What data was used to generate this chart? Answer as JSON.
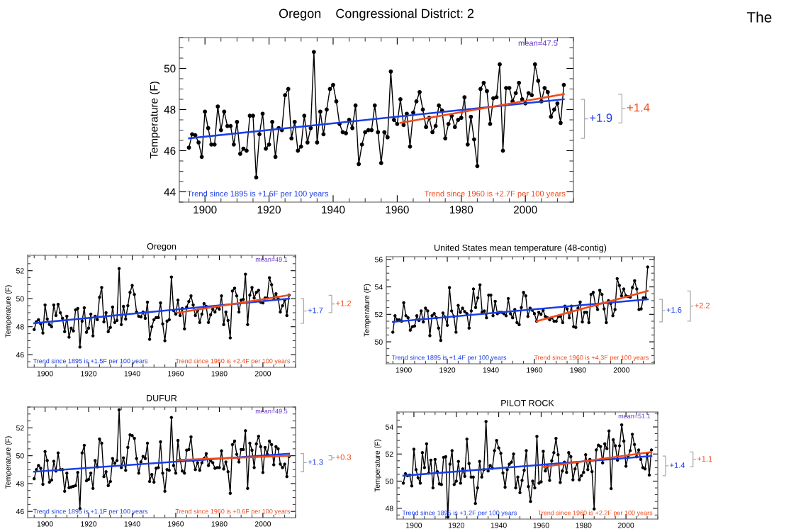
{
  "chart_data": [
    {
      "type": "line",
      "title": "Oregon    Congressional District: 2",
      "ylabel": "Temperature (F)",
      "marker": "circle",
      "xlim": [
        1892,
        2015
      ],
      "xticks": [
        1900,
        1920,
        1940,
        1960,
        1980,
        2000
      ],
      "ylim": [
        43.5,
        51.5
      ],
      "yticks": [
        44,
        46,
        48,
        50
      ],
      "grid": false,
      "x": [
        1895,
        1896,
        1897,
        1898,
        1899,
        1900,
        1901,
        1902,
        1903,
        1904,
        1905,
        1906,
        1907,
        1908,
        1909,
        1910,
        1911,
        1912,
        1913,
        1914,
        1915,
        1916,
        1917,
        1918,
        1919,
        1920,
        1921,
        1922,
        1923,
        1924,
        1925,
        1926,
        1927,
        1928,
        1929,
        1930,
        1931,
        1932,
        1933,
        1934,
        1935,
        1936,
        1937,
        1938,
        1939,
        1940,
        1941,
        1942,
        1943,
        1944,
        1945,
        1946,
        1947,
        1948,
        1949,
        1950,
        1951,
        1952,
        1953,
        1954,
        1955,
        1956,
        1957,
        1958,
        1959,
        1960,
        1961,
        1962,
        1963,
        1964,
        1965,
        1966,
        1967,
        1968,
        1969,
        1970,
        1971,
        1972,
        1973,
        1974,
        1975,
        1976,
        1977,
        1978,
        1979,
        1980,
        1981,
        1982,
        1983,
        1984,
        1985,
        1986,
        1987,
        1988,
        1989,
        1990,
        1991,
        1992,
        1993,
        1994,
        1995,
        1996,
        1997,
        1998,
        1999,
        2000,
        2001,
        2002,
        2003,
        2004,
        2005,
        2006,
        2007,
        2008,
        2009,
        2010,
        2011,
        2012
      ],
      "series": [
        {
          "color": "#000000",
          "values": [
            46.15,
            46.8,
            46.75,
            46.4,
            45.7,
            47.9,
            47.1,
            46.3,
            46.3,
            48.15,
            47.0,
            47.9,
            47.2,
            47.2,
            46.3,
            47.4,
            45.85,
            46.1,
            46.0,
            47.7,
            47.7,
            44.7,
            46.8,
            47.8,
            46.1,
            46.3,
            47.4,
            45.7,
            47.1,
            47.0,
            48.7,
            49.0,
            46.6,
            47.4,
            46.0,
            46.2,
            47.7,
            46.4,
            47.1,
            50.8,
            46.4,
            47.9,
            46.8,
            48.0,
            49.0,
            49.2,
            48.4,
            47.3,
            46.9,
            46.85,
            47.5,
            47.1,
            48.2,
            45.35,
            46.3,
            46.9,
            47.0,
            47.0,
            48.2,
            46.9,
            45.4,
            46.9,
            46.65,
            49.85,
            47.5,
            47.3,
            48.5,
            47.25,
            47.8,
            46.2,
            47.85,
            48.4,
            48.85,
            48.0,
            47.15,
            47.6,
            46.9,
            47.2,
            48.2,
            47.95,
            46.6,
            47.3,
            47.7,
            47.15,
            47.5,
            47.6,
            48.6,
            46.3,
            47.65,
            46.55,
            45.25,
            49.0,
            49.3,
            48.9,
            47.3,
            48.55,
            48.6,
            50.2,
            46.0,
            49.05,
            49.05,
            48.4,
            48.8,
            49.3,
            48.5,
            48.3,
            48.8,
            48.7,
            50.2,
            49.4,
            48.4,
            49.05,
            48.85,
            47.65,
            48.0,
            48.3,
            47.35,
            49.2
          ]
        },
        {
          "type": "line",
          "marker": "none",
          "color": "#1a3ee6",
          "x": [
            1895,
            2012
          ],
          "values": [
            46.6,
            48.5
          ]
        },
        {
          "type": "line",
          "marker": "none",
          "color": "#f04a1a",
          "x": [
            1961,
            2012
          ],
          "values": [
            47.35,
            48.75
          ]
        }
      ],
      "annotations": [
        "mean=47.5",
        "Trend since 1895 is +1.6F per 100 years",
        "Trend since 1960 is +2.7F per 100 years",
        "+1.9",
        "+1.4",
        "The"
      ]
    },
    {
      "type": "line",
      "title": "Oregon",
      "ylabel": "Temperature (F)",
      "marker": "circle",
      "xlim": [
        1892,
        2015
      ],
      "xticks": [
        1900,
        1920,
        1940,
        1960,
        1980,
        2000
      ],
      "ylim": [
        45.1,
        53.1
      ],
      "yticks": [
        46,
        48,
        50,
        52
      ],
      "grid": false,
      "x": [
        1895,
        1896,
        1897,
        1898,
        1899,
        1900,
        1901,
        1902,
        1903,
        1904,
        1905,
        1906,
        1907,
        1908,
        1909,
        1910,
        1911,
        1912,
        1913,
        1914,
        1915,
        1916,
        1917,
        1918,
        1919,
        1920,
        1921,
        1922,
        1923,
        1924,
        1925,
        1926,
        1927,
        1928,
        1929,
        1930,
        1931,
        1932,
        1933,
        1934,
        1935,
        1936,
        1937,
        1938,
        1939,
        1940,
        1941,
        1942,
        1943,
        1944,
        1945,
        1946,
        1947,
        1948,
        1949,
        1950,
        1951,
        1952,
        1953,
        1954,
        1955,
        1956,
        1957,
        1958,
        1959,
        1960,
        1961,
        1962,
        1963,
        1964,
        1965,
        1966,
        1967,
        1968,
        1969,
        1970,
        1971,
        1972,
        1973,
        1974,
        1975,
        1976,
        1977,
        1978,
        1979,
        1980,
        1981,
        1982,
        1983,
        1984,
        1985,
        1986,
        1987,
        1988,
        1989,
        1990,
        1991,
        1992,
        1993,
        1994,
        1995,
        1996,
        1997,
        1998,
        1999,
        2000,
        2001,
        2002,
        2003,
        2004,
        2005,
        2006,
        2007,
        2008,
        2009,
        2010,
        2011,
        2012
      ],
      "series": [
        {
          "color": "#000000",
          "values": [
            47.8,
            48.35,
            48.5,
            48.2,
            47.55,
            49.55,
            48.55,
            48.15,
            48.0,
            49.55,
            48.8,
            49.6,
            49.0,
            48.6,
            47.65,
            48.75,
            47.25,
            47.9,
            47.7,
            49.2,
            49.3,
            46.55,
            48.4,
            49.35,
            47.6,
            47.9,
            48.9,
            47.35,
            48.75,
            48.5,
            50.1,
            50.8,
            48.35,
            49.0,
            47.65,
            47.95,
            49.4,
            48.3,
            48.45,
            52.15,
            48.15,
            49.45,
            48.55,
            49.5,
            50.45,
            50.95,
            50.3,
            49.05,
            48.75,
            48.7,
            49.05,
            48.6,
            49.75,
            47.1,
            48.0,
            48.5,
            48.65,
            48.65,
            49.7,
            48.2,
            47.0,
            48.4,
            48.5,
            51.55,
            49.15,
            48.9,
            49.9,
            48.8,
            49.3,
            47.85,
            49.4,
            49.8,
            50.2,
            49.55,
            48.8,
            49.15,
            48.3,
            48.9,
            49.65,
            49.45,
            48.3,
            48.85,
            49.25,
            49.05,
            49.4,
            49.25,
            50.2,
            48.15,
            49.05,
            48.45,
            47.2,
            50.55,
            50.75,
            50.2,
            49.05,
            49.9,
            49.95,
            51.75,
            48.15,
            50.25,
            50.8,
            50.05,
            50.45,
            50.6,
            49.75,
            49.7,
            50.05,
            50.05,
            51.5,
            51.0,
            50.05,
            50.35,
            50.0,
            49.05,
            49.5,
            49.9,
            48.8,
            50.25
          ]
        },
        {
          "type": "line",
          "marker": "none",
          "color": "#1a3ee6",
          "x": [
            1895,
            2012
          ],
          "values": [
            48.25,
            50.0
          ]
        },
        {
          "type": "line",
          "marker": "none",
          "color": "#f04a1a",
          "x": [
            1961,
            2012
          ],
          "values": [
            49.0,
            50.25
          ]
        }
      ],
      "annotations": [
        "mean=49.1",
        "Trend since 1895 is +1.5F per 100 years",
        "Trend since 1960 is +2.4F per 100 years",
        "+1.7",
        "+1.2"
      ]
    },
    {
      "type": "line",
      "title": "United States mean temperature (48-contig)",
      "ylabel": "Temperature (F)",
      "marker": "circle",
      "xlim": [
        1892,
        2015
      ],
      "xticks": [
        1900,
        1920,
        1940,
        1960,
        1980,
        2000
      ],
      "ylim": [
        48.4,
        56.2
      ],
      "yticks": [
        50,
        52,
        54,
        56
      ],
      "grid": false,
      "x": [
        1895,
        1896,
        1897,
        1898,
        1899,
        1900,
        1901,
        1902,
        1903,
        1904,
        1905,
        1906,
        1907,
        1908,
        1909,
        1910,
        1911,
        1912,
        1913,
        1914,
        1915,
        1916,
        1917,
        1918,
        1919,
        1920,
        1921,
        1922,
        1923,
        1924,
        1925,
        1926,
        1927,
        1928,
        1929,
        1930,
        1931,
        1932,
        1933,
        1934,
        1935,
        1936,
        1937,
        1938,
        1939,
        1940,
        1941,
        1942,
        1943,
        1944,
        1945,
        1946,
        1947,
        1948,
        1949,
        1950,
        1951,
        1952,
        1953,
        1954,
        1955,
        1956,
        1957,
        1958,
        1959,
        1960,
        1961,
        1962,
        1963,
        1964,
        1965,
        1966,
        1967,
        1968,
        1969,
        1970,
        1971,
        1972,
        1973,
        1974,
        1975,
        1976,
        1977,
        1978,
        1979,
        1980,
        1981,
        1982,
        1983,
        1984,
        1985,
        1986,
        1987,
        1988,
        1989,
        1990,
        1991,
        1992,
        1993,
        1994,
        1995,
        1996,
        1997,
        1998,
        1999,
        2000,
        2001,
        2002,
        2003,
        2004,
        2005,
        2006,
        2007,
        2008,
        2009,
        2010,
        2011,
        2012
      ],
      "series": [
        {
          "color": "#000000",
          "values": [
            50.7,
            51.9,
            51.6,
            51.6,
            51.5,
            52.85,
            51.9,
            51.75,
            50.85,
            51.1,
            51.15,
            51.9,
            51.55,
            52.25,
            51.45,
            52.45,
            52.25,
            50.45,
            51.9,
            52.05,
            51.75,
            51.0,
            50.1,
            52.1,
            51.8,
            51.2,
            53.95,
            52.25,
            51.85,
            50.7,
            52.65,
            52.15,
            52.45,
            52.2,
            52.05,
            51.0,
            52.25,
            53.85,
            52.5,
            53.2,
            54.15,
            52.15,
            52.25,
            51.75,
            53.4,
            53.4,
            51.9,
            52.95,
            52.05,
            52.15,
            52.15,
            52.05,
            51.9,
            53.15,
            52.05,
            51.75,
            52.35,
            51.4,
            51.25,
            52.5,
            53.6,
            53.35,
            51.85,
            52.45,
            52.3,
            52.05,
            51.5,
            52.15,
            52.0,
            52.3,
            51.85,
            51.75,
            51.6,
            51.75,
            51.5,
            51.5,
            51.85,
            51.85,
            51.4,
            52.6,
            52.4,
            51.75,
            52.6,
            51.1,
            51.05,
            52.45,
            52.9,
            51.45,
            52.15,
            52.15,
            51.4,
            53.45,
            53.6,
            52.7,
            52.35,
            53.75,
            53.45,
            52.4,
            51.4,
            53.0,
            52.8,
            51.9,
            52.35,
            54.6,
            54.1,
            53.35,
            53.85,
            53.35,
            53.3,
            53.25,
            53.95,
            54.45,
            53.85,
            52.35,
            52.4,
            53.2,
            53.2,
            55.45
          ]
        },
        {
          "type": "line",
          "marker": "none",
          "color": "#1a3ee6",
          "x": [
            1895,
            2012
          ],
          "values": [
            51.45,
            53.1
          ]
        },
        {
          "type": "line",
          "marker": "none",
          "color": "#f04a1a",
          "x": [
            1961,
            2012
          ],
          "values": [
            51.5,
            53.7
          ]
        }
      ],
      "annotations": [
        null,
        "Trend since 1895 is +1.4F per 100 years",
        "Trend since 1960 is +4.3F per 100 years",
        "+1.6",
        "+2.2"
      ]
    },
    {
      "type": "line",
      "title": "DUFUR",
      "ylabel": "Temperature (F)",
      "marker": "circle",
      "xlim": [
        1892,
        2015
      ],
      "xticks": [
        1900,
        1920,
        1940,
        1960,
        1980,
        2000
      ],
      "ylim": [
        45.55,
        53.5
      ],
      "yticks": [
        46,
        48,
        50,
        52
      ],
      "grid": false,
      "x": [
        1895,
        1896,
        1897,
        1898,
        1899,
        1900,
        1901,
        1902,
        1903,
        1904,
        1905,
        1906,
        1907,
        1908,
        1909,
        1910,
        1911,
        1912,
        1913,
        1914,
        1915,
        1916,
        1917,
        1918,
        1919,
        1920,
        1921,
        1922,
        1923,
        1924,
        1925,
        1926,
        1927,
        1928,
        1929,
        1930,
        1931,
        1932,
        1933,
        1934,
        1935,
        1936,
        1937,
        1938,
        1939,
        1940,
        1941,
        1942,
        1943,
        1944,
        1945,
        1946,
        1947,
        1948,
        1949,
        1950,
        1951,
        1952,
        1953,
        1954,
        1955,
        1956,
        1957,
        1958,
        1959,
        1960,
        1961,
        1962,
        1963,
        1964,
        1965,
        1966,
        1967,
        1968,
        1969,
        1970,
        1971,
        1972,
        1973,
        1974,
        1975,
        1976,
        1977,
        1978,
        1979,
        1980,
        1981,
        1982,
        1983,
        1984,
        1985,
        1986,
        1987,
        1988,
        1989,
        1990,
        1991,
        1992,
        1993,
        1994,
        1995,
        1996,
        1997,
        1998,
        1999,
        2000,
        2001,
        2002,
        2003,
        2004,
        2005,
        2006,
        2007,
        2008,
        2009,
        2010,
        2011,
        2012
      ],
      "series": [
        {
          "color": "#000000",
          "values": [
            48.35,
            49.0,
            49.3,
            49.1,
            47.95,
            50.3,
            49.65,
            48.1,
            48.25,
            49.6,
            48.9,
            50.2,
            49.0,
            49.0,
            47.45,
            48.75,
            47.7,
            47.75,
            47.8,
            47.85,
            48.8,
            46.2,
            50.2,
            50.75,
            48.2,
            48.3,
            48.75,
            47.65,
            49.65,
            49.2,
            51.2,
            50.9,
            48.5,
            48.85,
            47.85,
            48.15,
            49.8,
            49.45,
            49.65,
            53.3,
            49.15,
            49.85,
            48.95,
            50.6,
            51.5,
            51.45,
            51.25,
            49.8,
            48.75,
            49.55,
            49.95,
            49.8,
            50.9,
            48.15,
            48.65,
            48.1,
            49.1,
            49.15,
            51.0,
            48.75,
            47.45,
            49.0,
            48.95,
            52.75,
            49.3,
            48.75,
            51.1,
            49.7,
            48.9,
            48.75,
            50.4,
            50.45,
            51.35,
            49.65,
            49.0,
            49.5,
            48.95,
            49.5,
            49.8,
            50.15,
            49.3,
            49.65,
            49.5,
            49.1,
            49.15,
            49.15,
            50.35,
            49.05,
            49.55,
            48.85,
            47.3,
            50.8,
            51.05,
            50.1,
            49.55,
            50.45,
            50.45,
            51.8,
            47.65,
            50.9,
            50.4,
            49.15,
            50.85,
            51.4,
            50.65,
            48.8,
            50.6,
            50.1,
            51.05,
            50.8,
            49.35,
            50.65,
            50.5,
            49.4,
            49.15,
            49.4,
            48.5,
            49.95
          ]
        },
        {
          "type": "line",
          "marker": "none",
          "color": "#1a3ee6",
          "x": [
            1895,
            2012
          ],
          "values": [
            48.85,
            50.15
          ]
        },
        {
          "type": "line",
          "marker": "none",
          "color": "#f04a1a",
          "x": [
            1961,
            2012
          ],
          "values": [
            49.7,
            50.0
          ]
        }
      ],
      "annotations": [
        "mean=49.5",
        "Trend since 1895 is +1.1F per 100 years",
        "Trend since 1960 is +0.6F per 100 years",
        "+1.3",
        "+0.3"
      ]
    },
    {
      "type": "line",
      "title": "PILOT ROCK",
      "ylabel": "Temperature (F)",
      "marker": "circle",
      "xlim": [
        1892,
        2015
      ],
      "xticks": [
        1900,
        1920,
        1940,
        1960,
        1980,
        2000
      ],
      "ylim": [
        47.2,
        55.1
      ],
      "yticks": [
        48,
        50,
        52,
        54
      ],
      "grid": false,
      "x": [
        1895,
        1896,
        1897,
        1898,
        1899,
        1900,
        1901,
        1902,
        1903,
        1904,
        1905,
        1906,
        1907,
        1908,
        1909,
        1910,
        1911,
        1912,
        1913,
        1914,
        1915,
        1916,
        1917,
        1918,
        1919,
        1920,
        1921,
        1922,
        1923,
        1924,
        1925,
        1926,
        1927,
        1928,
        1929,
        1930,
        1931,
        1932,
        1933,
        1934,
        1935,
        1936,
        1937,
        1938,
        1939,
        1940,
        1941,
        1942,
        1943,
        1944,
        1945,
        1946,
        1947,
        1948,
        1949,
        1950,
        1951,
        1952,
        1953,
        1954,
        1955,
        1956,
        1957,
        1958,
        1959,
        1960,
        1961,
        1962,
        1963,
        1964,
        1965,
        1966,
        1967,
        1968,
        1969,
        1970,
        1971,
        1972,
        1973,
        1974,
        1975,
        1976,
        1977,
        1978,
        1979,
        1980,
        1981,
        1982,
        1983,
        1984,
        1985,
        1986,
        1987,
        1988,
        1989,
        1990,
        1991,
        1992,
        1993,
        1994,
        1995,
        1996,
        1997,
        1998,
        1999,
        2000,
        2001,
        2002,
        2003,
        2004,
        2005,
        2006,
        2007,
        2008,
        2009,
        2010,
        2011,
        2012
      ],
      "series": [
        {
          "color": "#000000",
          "values": [
            49.85,
            50.55,
            50.4,
            50.45,
            49.65,
            52.35,
            50.85,
            50.25,
            49.85,
            52.1,
            51.0,
            52.75,
            50.6,
            51.55,
            49.5,
            51.6,
            50.7,
            49.8,
            49.75,
            51.75,
            51.8,
            47.35,
            51.25,
            52.25,
            49.75,
            50.0,
            51.45,
            49.85,
            50.9,
            50.35,
            53.1,
            51.3,
            50.3,
            50.3,
            48.35,
            49.5,
            51.45,
            50.3,
            50.85,
            54.4,
            50.75,
            51.15,
            50.95,
            52.25,
            53.0,
            52.45,
            52.05,
            50.6,
            49.55,
            50.85,
            51.25,
            51.4,
            52.0,
            49.5,
            50.3,
            49.15,
            50.05,
            50.8,
            52.25,
            49.6,
            48.5,
            50.0,
            49.5,
            53.3,
            49.85,
            49.95,
            52.2,
            50.75,
            51.1,
            50.05,
            51.5,
            52.1,
            53.15,
            51.95,
            49.9,
            50.75,
            51.4,
            50.65,
            52.1,
            51.8,
            50.1,
            50.9,
            51.35,
            50.1,
            50.4,
            50.65,
            51.95,
            50.85,
            51.6,
            50.7,
            47.95,
            52.3,
            52.65,
            52.55,
            51.35,
            52.75,
            52.4,
            53.7,
            49.45,
            53.05,
            52.6,
            51.55,
            52.6,
            54.15,
            52.95,
            51.1,
            51.85,
            52.25,
            53.45,
            52.7,
            51.8,
            52.3,
            51.6,
            51.0,
            50.9,
            52.05,
            50.45,
            52.3
          ]
        },
        {
          "type": "line",
          "marker": "none",
          "color": "#1a3ee6",
          "x": [
            1895,
            2012
          ],
          "values": [
            50.4,
            51.85
          ]
        },
        {
          "type": "line",
          "marker": "none",
          "color": "#f04a1a",
          "x": [
            1961,
            2012
          ],
          "values": [
            51.05,
            52.15
          ]
        }
      ],
      "annotations": [
        "mean=51.1",
        "Trend since 1895 is +1.2F per 100 years",
        "Trend since 1960 is +2.2F per 100 years",
        "+1.4",
        "+1.1"
      ]
    }
  ]
}
